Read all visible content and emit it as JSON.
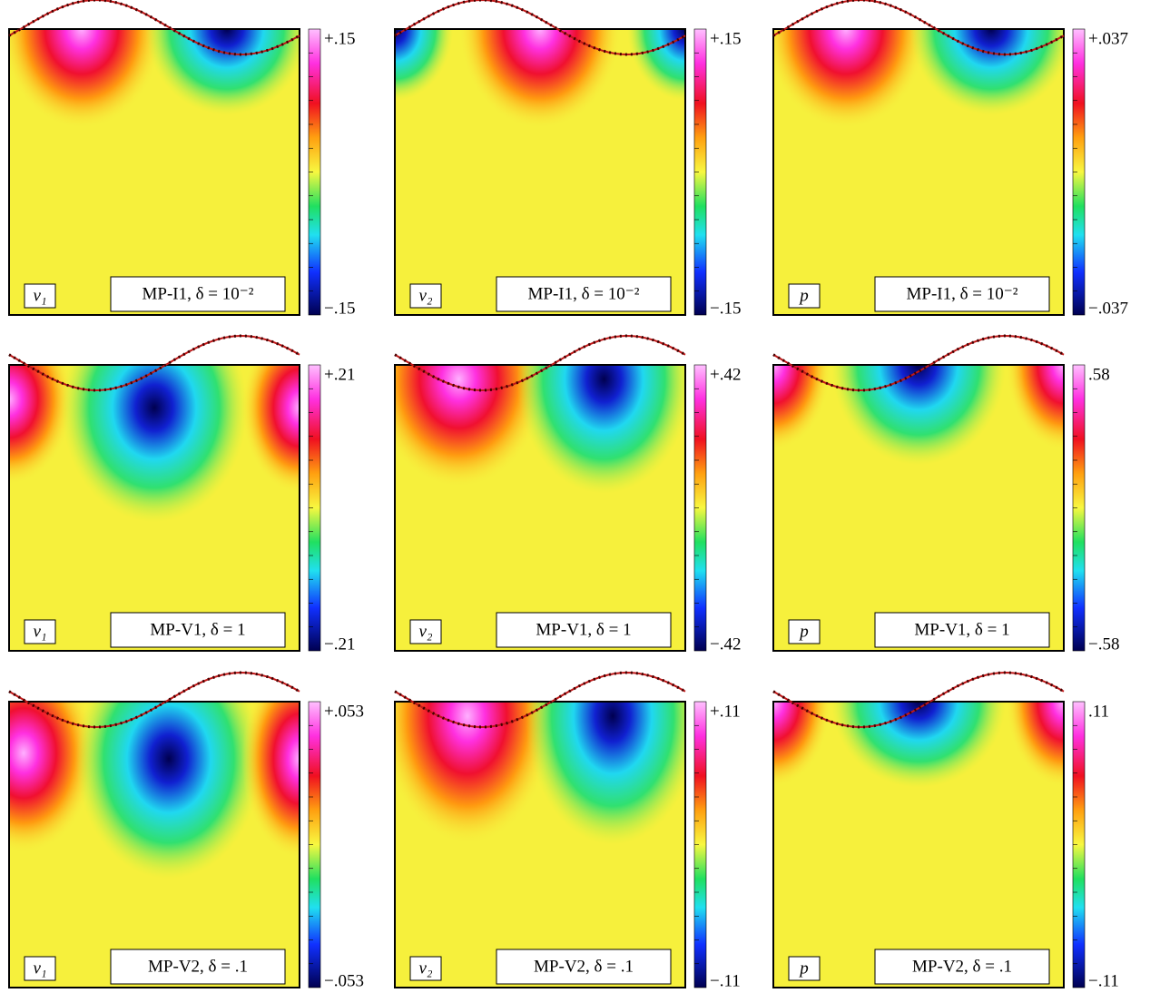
{
  "panels": [
    {
      "field": "v₁",
      "label": "MP-I1, δ = 10⁻²",
      "colorbar": {
        "max": "+.15",
        "min": "−.15"
      }
    },
    {
      "field": "v₂",
      "label": "MP-I1, δ = 10⁻²",
      "colorbar": {
        "max": "+.15",
        "min": "−.15"
      }
    },
    {
      "field": "p",
      "label": "MP-I1, δ = 10⁻²",
      "colorbar": {
        "max": "+.037",
        "min": "−.037"
      }
    },
    {
      "field": "v₁",
      "label": "MP-V1, δ = 1",
      "colorbar": {
        "max": "+.21",
        "min": "−.21"
      }
    },
    {
      "field": "v₂",
      "label": "MP-V1, δ = 1",
      "colorbar": {
        "max": "+.42",
        "min": "−.42"
      }
    },
    {
      "field": "p",
      "label": "MP-V1, δ = 1",
      "colorbar": {
        "max": ".58",
        "min": "−.58"
      }
    },
    {
      "field": "v₁",
      "label": "MP-V2, δ = .1",
      "colorbar": {
        "max": "+.053",
        "min": "−.053"
      }
    },
    {
      "field": "v₂",
      "label": "MP-V2, δ = .1",
      "colorbar": {
        "max": "+.11",
        "min": "−.11"
      }
    },
    {
      "field": "p",
      "label": "MP-V2, δ = .1",
      "colorbar": {
        "max": ".11",
        "min": "−.11"
      }
    }
  ]
}
